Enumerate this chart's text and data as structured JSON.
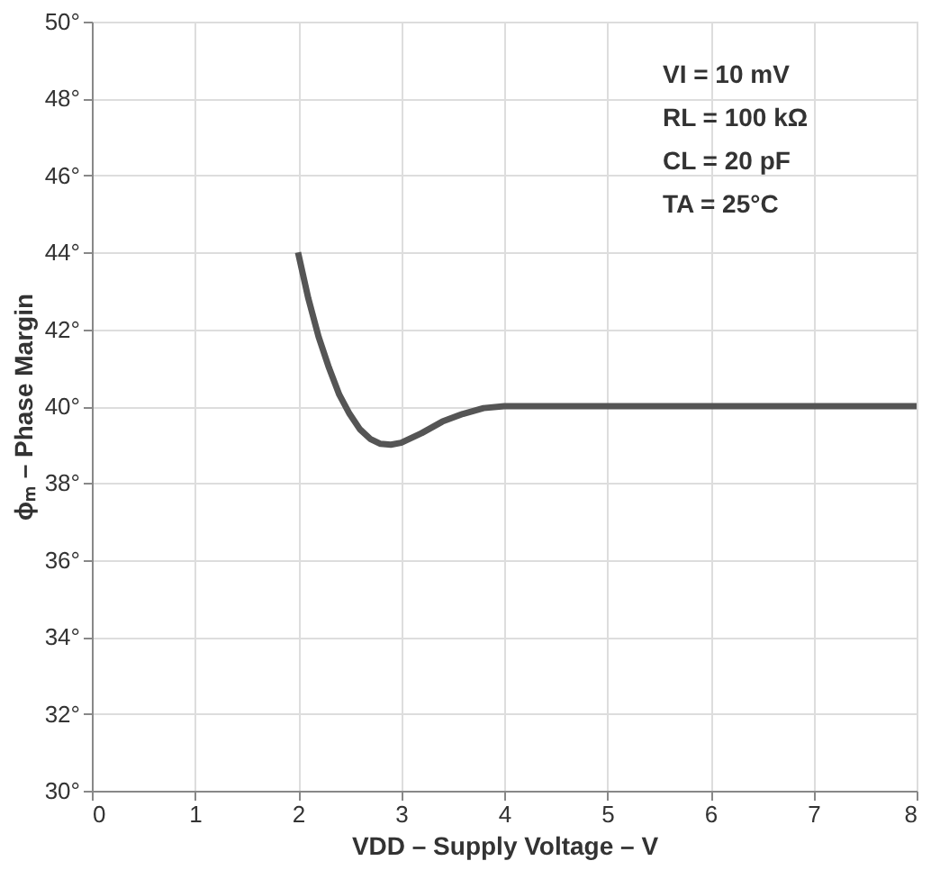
{
  "chart_data": {
    "type": "line",
    "xlabel": "VDD – Supply Voltage – V",
    "ylabel": "ϕₘ – Phase Margin",
    "x": [
      2,
      2.1,
      2.2,
      2.3,
      2.4,
      2.5,
      2.6,
      2.7,
      2.8,
      2.9,
      3.0,
      3.2,
      3.4,
      3.6,
      3.8,
      4.0,
      4.3,
      5,
      6,
      7,
      8
    ],
    "series": [
      {
        "color": "#555555",
        "values": [
          44,
          42.8,
          41.8,
          41,
          40.3,
          39.8,
          39.4,
          39.15,
          39.02,
          39,
          39.05,
          39.3,
          39.6,
          39.8,
          39.95,
          40,
          40,
          40,
          40,
          40,
          40
        ]
      }
    ],
    "xlim": [
      0,
      8
    ],
    "xticks": [
      0,
      1,
      2,
      3,
      4,
      5,
      6,
      7,
      8
    ],
    "ylim": [
      30,
      50
    ],
    "yticks": [
      {
        "value": 30,
        "label": "30°"
      },
      {
        "value": 32,
        "label": "32°"
      },
      {
        "value": 34,
        "label": "34°"
      },
      {
        "value": 36,
        "label": "36°"
      },
      {
        "value": 38,
        "label": "38°"
      },
      {
        "value": 40,
        "label": "40°"
      },
      {
        "value": 42,
        "label": "42°"
      },
      {
        "value": 44,
        "label": "44°"
      },
      {
        "value": 46,
        "label": "46°"
      },
      {
        "value": 48,
        "label": "48°"
      },
      {
        "value": 50,
        "label": "50°"
      }
    ],
    "grid": true,
    "marker": "none",
    "line_style": "solid",
    "annotations": [
      "VI = 10 mV",
      "RL = 100 kΩ",
      "CL = 20 pF",
      "TA = 25°C"
    ]
  }
}
